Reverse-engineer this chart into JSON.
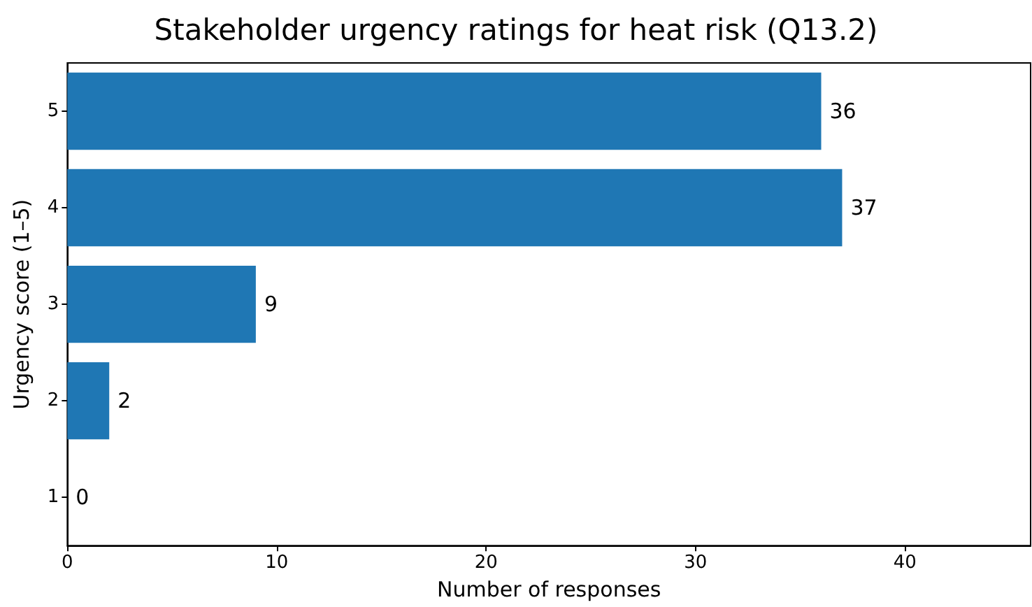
{
  "chart_data": {
    "type": "bar",
    "orientation": "horizontal",
    "title": "Stakeholder urgency ratings for heat risk (Q13.2)",
    "xlabel": "Number of responses",
    "ylabel": "Urgency score (1–5)",
    "categories": [
      "5",
      "4",
      "3",
      "2",
      "1"
    ],
    "values": [
      36,
      37,
      9,
      2,
      0
    ],
    "color": "#1f77b4",
    "xlim": [
      0,
      46
    ],
    "xticks": [
      0,
      10,
      20,
      30,
      40
    ],
    "data_labels": true,
    "grid": false
  }
}
